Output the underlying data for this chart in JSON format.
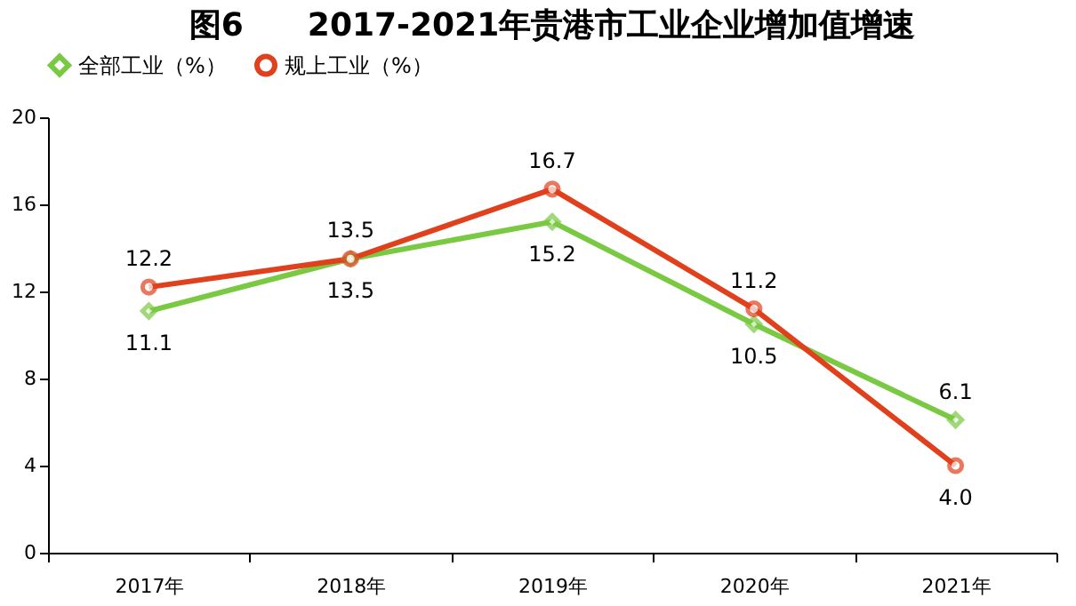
{
  "chart_data": {
    "type": "line",
    "title": "图6　　2017-2021年贵港市工业企业增加值增速",
    "categories": [
      "2017年",
      "2018年",
      "2019年",
      "2020年",
      "2021年"
    ],
    "series": [
      {
        "name": "全部工业（%）",
        "color": "#7ac943",
        "marker": "diamond",
        "values": [
          11.1,
          13.5,
          15.2,
          10.5,
          6.1
        ],
        "value_labels": [
          "11.1",
          "13.5",
          "15.2",
          "10.5",
          "6.1"
        ]
      },
      {
        "name": "规上工业（%）",
        "color": "#e0401c",
        "marker": "circle",
        "values": [
          12.2,
          13.5,
          16.7,
          11.2,
          4.0
        ],
        "value_labels": [
          "12.2",
          "13.5",
          "16.7",
          "11.2",
          "4.0"
        ]
      }
    ],
    "ylim": [
      0,
      20
    ],
    "yticks": [
      0,
      4,
      8,
      12,
      16,
      20
    ],
    "grid": false,
    "legend": "top"
  }
}
